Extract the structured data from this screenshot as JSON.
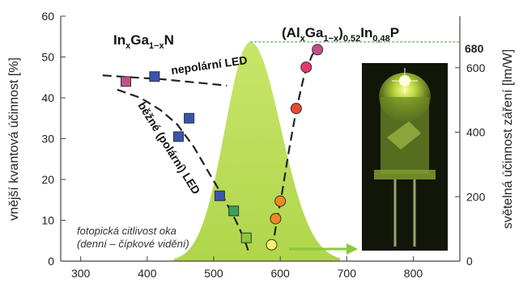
{
  "chart_data": {
    "type": "scatter",
    "y_label": "vnější kvantová účinnost [%]",
    "y2_label": "světelná účinnost záření [lm/W]",
    "xlim": [
      270,
      870
    ],
    "ylim": [
      0,
      60
    ],
    "y2lim": [
      0,
      760
    ],
    "x_ticks": [
      "300",
      "400",
      "500",
      "600",
      "700",
      "800"
    ],
    "y_ticks": [
      "0",
      "10",
      "20",
      "30",
      "40",
      "50",
      "60"
    ],
    "y2_ticks": [
      "0",
      "200",
      "400",
      "600"
    ],
    "y2_highlight": "680",
    "colors": {
      "curve_fill": "#b9dc50",
      "marker_stroke": "#333333",
      "dashed": "#222222",
      "accent_green": "#3a9a3a",
      "arrow": "#8dc63f"
    },
    "series_titles": {
      "ingan": [
        "In",
        "x",
        "Ga",
        "1−x",
        "N"
      ],
      "algainp": [
        "(Al",
        "x",
        "Ga",
        "1−x",
        ")",
        "0.52",
        "In",
        "0,48",
        "P"
      ]
    },
    "annotations": {
      "nonpolar": "nepolární LED",
      "polar": "běžné (polární) LED",
      "photopic_line1": "fotopická citlivost oka",
      "photopic_line2": "(denní – čípkové vidění)"
    },
    "series": [
      {
        "name": "nepolární LED",
        "marker": "square",
        "points": [
          {
            "x": 368,
            "y": 44,
            "color": "#c0508c"
          },
          {
            "x": 411,
            "y": 45.2,
            "color": "#3a54b0"
          }
        ]
      },
      {
        "name": "běžné (polární) LED",
        "marker": "square",
        "points": [
          {
            "x": 447,
            "y": 30.5,
            "color": "#3a54b0"
          },
          {
            "x": 463,
            "y": 35,
            "color": "#3a54b0"
          },
          {
            "x": 509,
            "y": 16,
            "color": "#3a54b0"
          },
          {
            "x": 530,
            "y": 12.3,
            "color": "#3aa060"
          },
          {
            "x": 549,
            "y": 5.7,
            "color": "#8dc63f"
          }
        ]
      },
      {
        "name": "(AlGa)InP",
        "marker": "circle",
        "points": [
          {
            "x": 587,
            "y": 4,
            "color": "#f6f36a"
          },
          {
            "x": 593,
            "y": 10.4,
            "color": "#f08a20"
          },
          {
            "x": 600,
            "y": 14.7,
            "color": "#f08a20"
          },
          {
            "x": 624,
            "y": 37.4,
            "color": "#e84a30"
          },
          {
            "x": 639,
            "y": 47.5,
            "color": "#e8386a"
          },
          {
            "x": 656,
            "y": 51.8,
            "color": "#c0508c"
          }
        ]
      }
    ]
  }
}
